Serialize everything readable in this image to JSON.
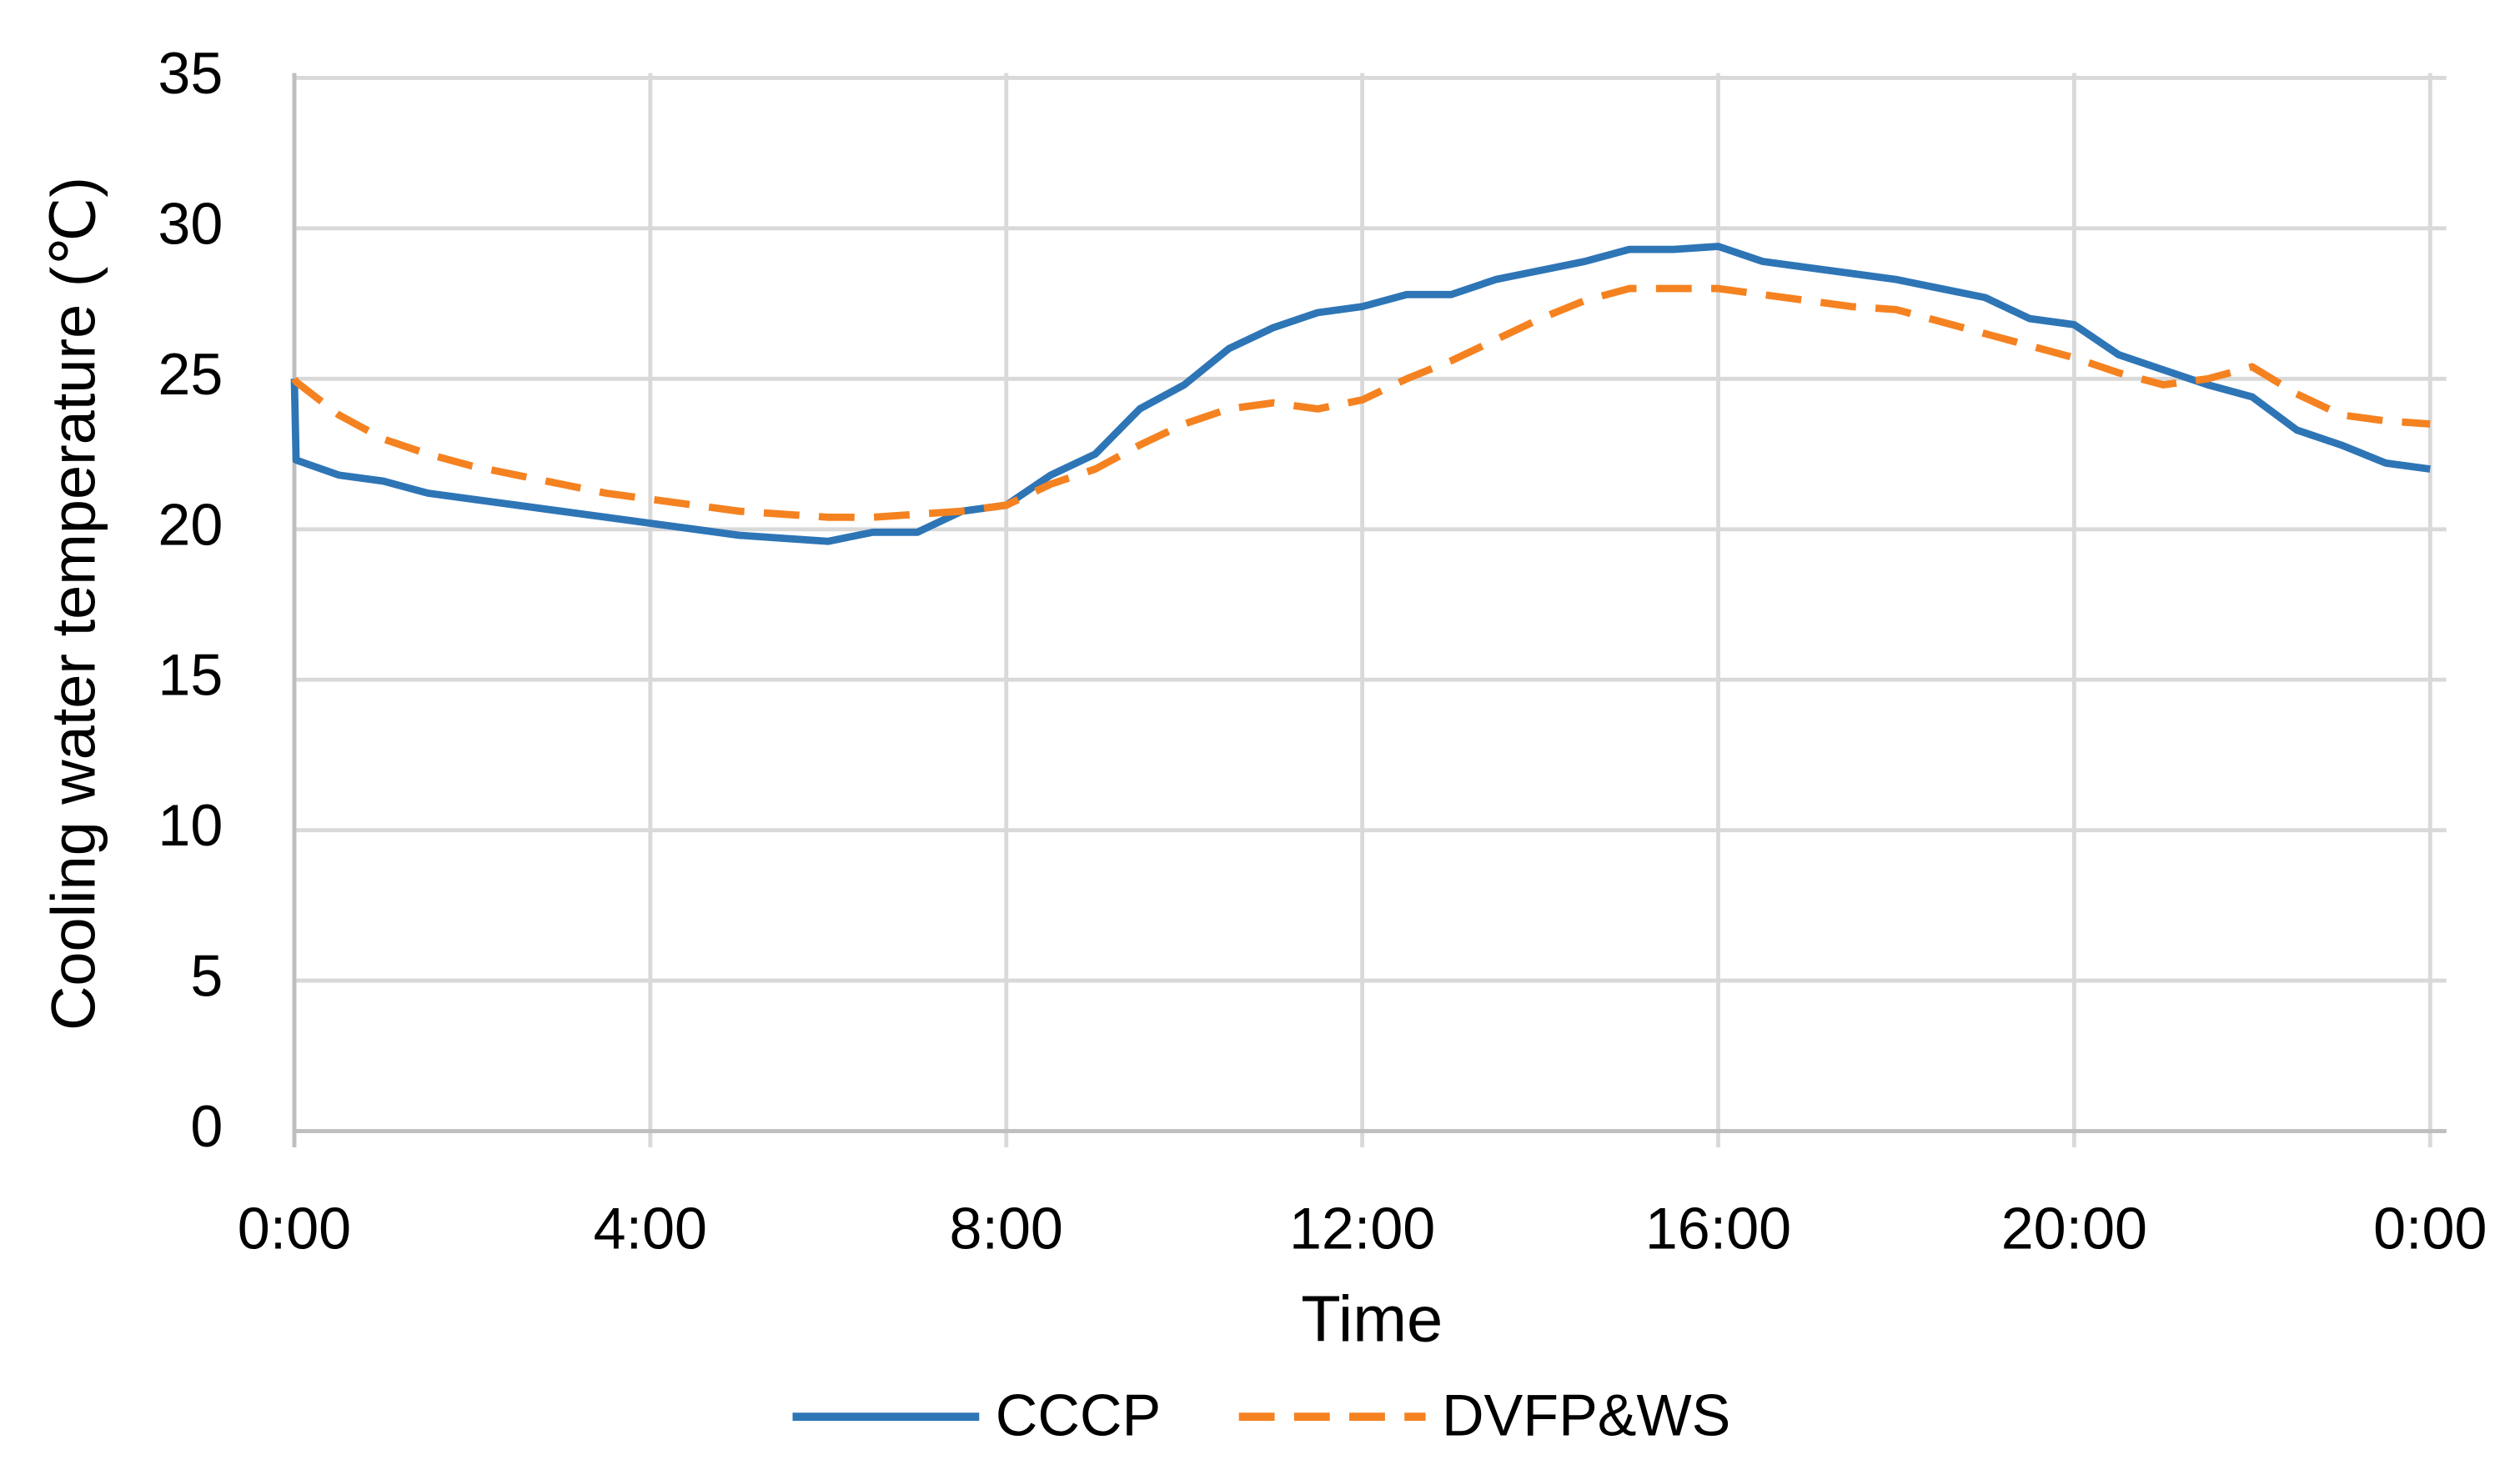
{
  "chart_data": {
    "type": "line",
    "x_label": "Time",
    "y_label": "Cooling water temperature (℃)",
    "x": [
      0,
      0.02,
      0.5,
      1,
      1.5,
      2,
      2.5,
      3,
      3.5,
      4,
      4.5,
      5,
      5.5,
      6,
      6.5,
      7,
      7.5,
      8,
      8.5,
      9,
      9.5,
      10,
      10.5,
      11,
      11.5,
      12,
      12.5,
      13,
      13.5,
      14,
      14.5,
      15,
      15.5,
      16,
      16.5,
      17,
      17.5,
      18,
      18.5,
      19,
      19.5,
      20,
      20.5,
      21,
      21.5,
      22,
      22.5,
      23,
      23.5,
      24
    ],
    "series": [
      {
        "name": "CCCP",
        "color": "#2e75b6",
        "dash": false,
        "values": [
          25,
          22.3,
          21.8,
          21.6,
          21.2,
          21.0,
          20.8,
          20.6,
          20.4,
          20.2,
          20.0,
          19.8,
          19.7,
          19.6,
          19.9,
          19.9,
          20.6,
          20.8,
          21.8,
          22.5,
          24.0,
          24.8,
          26.0,
          26.7,
          27.2,
          27.4,
          27.8,
          27.8,
          28.3,
          28.6,
          28.9,
          29.3,
          29.3,
          29.4,
          28.9,
          28.7,
          28.5,
          28.3,
          28.0,
          27.7,
          27.0,
          26.8,
          25.8,
          25.3,
          24.8,
          24.4,
          23.3,
          22.8,
          22.2,
          22.0
        ]
      },
      {
        "name": "DVFP&WS",
        "color": "#f58220",
        "dash": true,
        "values": [
          25.0,
          24.9,
          23.8,
          23.0,
          22.5,
          22.1,
          21.8,
          21.5,
          21.2,
          21.0,
          20.8,
          20.6,
          20.5,
          20.4,
          20.4,
          20.5,
          20.6,
          20.8,
          21.5,
          22.0,
          22.8,
          23.5,
          24.0,
          24.2,
          24.0,
          24.3,
          25.0,
          25.6,
          26.3,
          27.0,
          27.6,
          28.0,
          28.0,
          28.0,
          27.8,
          27.6,
          27.4,
          27.3,
          26.9,
          26.5,
          26.1,
          25.7,
          25.2,
          24.8,
          25.0,
          25.4,
          24.5,
          23.8,
          23.6,
          23.5
        ]
      }
    ],
    "xlim": [
      0,
      24
    ],
    "xticks": [
      {
        "value": 0,
        "label": "0:00"
      },
      {
        "value": 4,
        "label": "4:00"
      },
      {
        "value": 8,
        "label": "8:00"
      },
      {
        "value": 12,
        "label": "12:00"
      },
      {
        "value": 16,
        "label": "16:00"
      },
      {
        "value": 20,
        "label": "20:00"
      },
      {
        "value": 24,
        "label": "0:00"
      }
    ],
    "ylim": [
      0,
      35
    ],
    "yticks": [
      0,
      5,
      10,
      15,
      20,
      25,
      30,
      35
    ],
    "grid": true,
    "legend": "bottom"
  }
}
